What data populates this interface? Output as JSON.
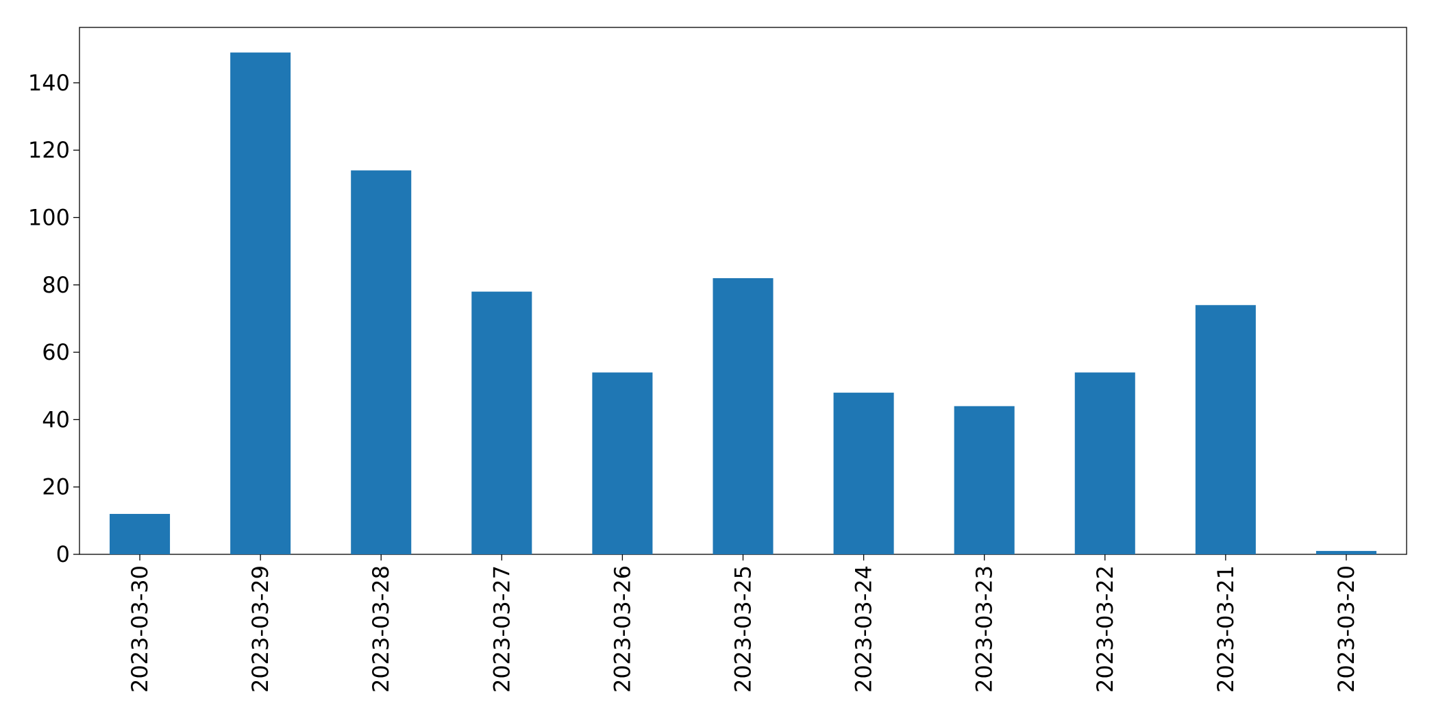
{
  "chart_data": {
    "type": "bar",
    "categories": [
      "2023-03-30",
      "2023-03-29",
      "2023-03-28",
      "2023-03-27",
      "2023-03-26",
      "2023-03-25",
      "2023-03-24",
      "2023-03-23",
      "2023-03-22",
      "2023-03-21",
      "2023-03-20"
    ],
    "values": [
      12,
      149,
      114,
      78,
      54,
      82,
      48,
      44,
      54,
      74,
      1
    ],
    "color": "#1f77b4",
    "ylim": [
      0,
      156.45
    ],
    "yticks": [
      0,
      20,
      40,
      60,
      80,
      100,
      120,
      140
    ],
    "grid": false
  }
}
